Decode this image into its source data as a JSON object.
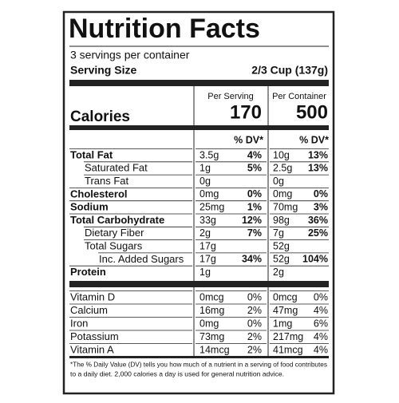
{
  "title": "Nutrition Facts",
  "servings": "3 servings per container",
  "serving_size": {
    "label": "Serving Size",
    "value": "2/3 Cup (137g)"
  },
  "columns": [
    "Per Serving",
    "Per Container"
  ],
  "calories": {
    "label": "Calories",
    "values": [
      "170",
      "500"
    ]
  },
  "dv_header": [
    "% DV*",
    "% DV*"
  ],
  "nutrients": [
    {
      "name": "Total Fat",
      "bold": true,
      "indent": 0,
      "per_serving": [
        "3.5g",
        "4%"
      ],
      "per_container": [
        "10g",
        "13%"
      ]
    },
    {
      "name": "Saturated Fat",
      "bold": false,
      "indent": 1,
      "per_serving": [
        "1g",
        "5%"
      ],
      "per_container": [
        "2.5g",
        "13%"
      ]
    },
    {
      "name": "Trans Fat",
      "bold": false,
      "indent": 1,
      "per_serving": [
        "0g"
      ],
      "per_container": [
        "0g"
      ]
    },
    {
      "name": "Cholesterol",
      "bold": true,
      "indent": 0,
      "per_serving": [
        "0mg",
        "0%"
      ],
      "per_container": [
        "0mg",
        "0%"
      ]
    },
    {
      "name": "Sodium",
      "bold": true,
      "indent": 0,
      "per_serving": [
        "25mg",
        "1%"
      ],
      "per_container": [
        "70mg",
        "3%"
      ]
    },
    {
      "name": "Total Carbohydrate",
      "bold": true,
      "indent": 0,
      "per_serving": [
        "33g",
        "12%"
      ],
      "per_container": [
        "98g",
        "36%"
      ]
    },
    {
      "name": "Dietary Fiber",
      "bold": false,
      "indent": 1,
      "per_serving": [
        "2g",
        "7%"
      ],
      "per_container": [
        "7g",
        "25%"
      ]
    },
    {
      "name": "Total Sugars",
      "bold": false,
      "indent": 1,
      "per_serving": [
        "17g"
      ],
      "per_container": [
        "52g"
      ]
    },
    {
      "name": "Inc. Added Sugars",
      "bold": false,
      "indent": 2,
      "per_serving": [
        "17g",
        "34%"
      ],
      "per_container": [
        "52g",
        "104%"
      ]
    },
    {
      "name": "Protein",
      "bold": true,
      "indent": 0,
      "per_serving": [
        "1g"
      ],
      "per_container": [
        "2g"
      ]
    }
  ],
  "vitamins": [
    {
      "name": "Vitamin D",
      "per_serving": [
        "0mcg",
        "0%"
      ],
      "per_container": [
        "0mcg",
        "0%"
      ]
    },
    {
      "name": "Calcium",
      "per_serving": [
        "16mg",
        "2%"
      ],
      "per_container": [
        "47mg",
        "4%"
      ]
    },
    {
      "name": "Iron",
      "per_serving": [
        "0mg",
        "0%"
      ],
      "per_container": [
        "1mg",
        "6%"
      ]
    },
    {
      "name": "Potassium",
      "per_serving": [
        "73mg",
        "2%"
      ],
      "per_container": [
        "217mg",
        "4%"
      ]
    },
    {
      "name": "Vitamin A",
      "per_serving": [
        "14mcg",
        "2%"
      ],
      "per_container": [
        "41mcg",
        "4%"
      ]
    }
  ],
  "footnote": [
    "*The % Daily Value (DV) tells you how much of a nutrient in a serving of food contributes",
    "to a daily diet. 2,000 calories a day is used for general nutrition advice."
  ]
}
